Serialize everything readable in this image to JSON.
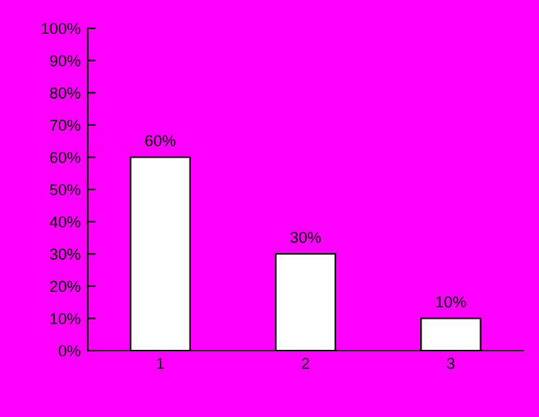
{
  "chart_data": {
    "type": "bar",
    "categories": [
      "1",
      "2",
      "3"
    ],
    "values": [
      60,
      30,
      10
    ],
    "value_labels": [
      "60%",
      "30%",
      "10%"
    ],
    "color": "#ffffff",
    "ylim": [
      0,
      100
    ],
    "yticks": [
      {
        "value": 0,
        "label": "0%"
      },
      {
        "value": 10,
        "label": "10%"
      },
      {
        "value": 20,
        "label": "20%"
      },
      {
        "value": 30,
        "label": "30%"
      },
      {
        "value": 40,
        "label": "40%"
      },
      {
        "value": 50,
        "label": "50%"
      },
      {
        "value": 60,
        "label": "60%"
      },
      {
        "value": 70,
        "label": "70%"
      },
      {
        "value": 80,
        "label": "80%"
      },
      {
        "value": 90,
        "label": "90%"
      },
      {
        "value": 100,
        "label": "100%"
      }
    ],
    "grid": false,
    "legend": false
  }
}
